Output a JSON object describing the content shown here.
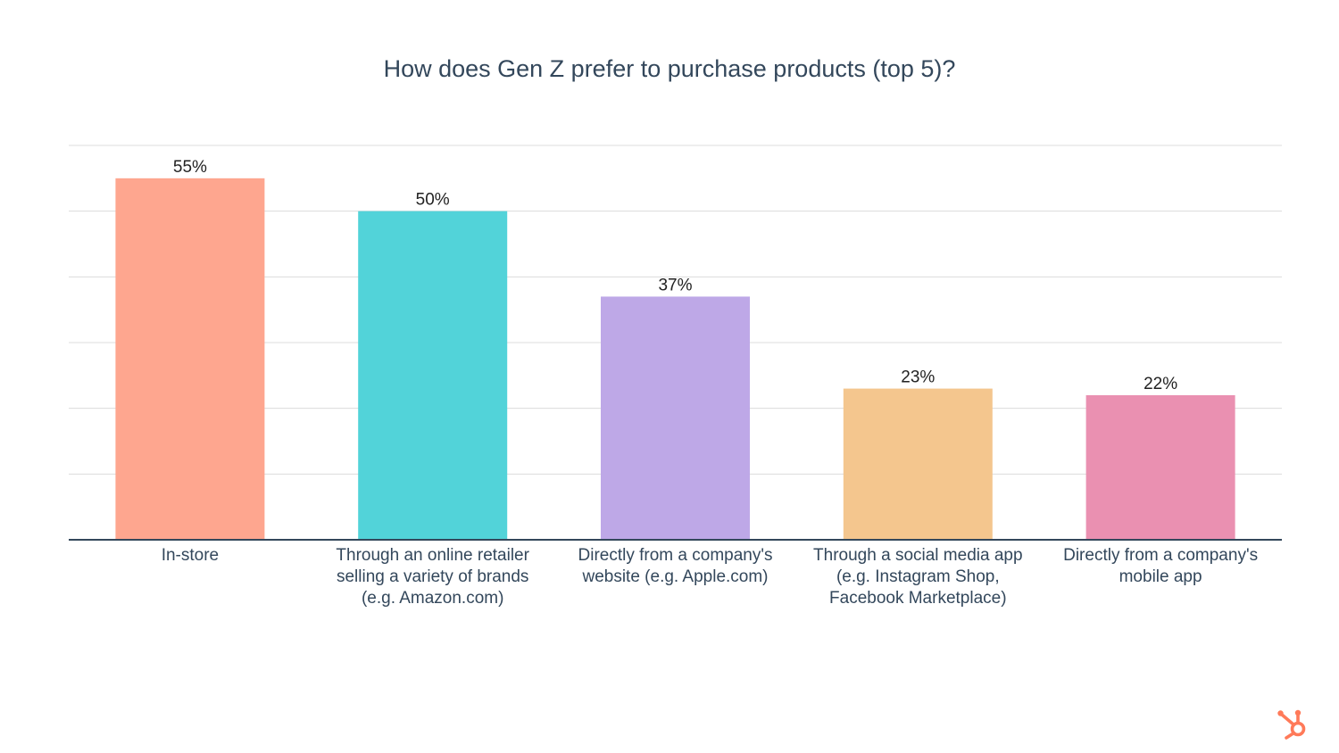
{
  "chart_data": {
    "type": "bar",
    "title": "How does Gen Z prefer to purchase products (top 5)?",
    "xlabel": "",
    "ylabel": "",
    "ylim": [
      0,
      60
    ],
    "grid": true,
    "categories": [
      [
        "In-store"
      ],
      [
        "Through an online retailer",
        "selling a variety of brands",
        "(e.g. Amazon.com)"
      ],
      [
        "Directly from a company's",
        "website (e.g. Apple.com)"
      ],
      [
        "Through a social media app",
        "(e.g. Instagram Shop,",
        "Facebook Marketplace)"
      ],
      [
        "Directly from a company's",
        "mobile app"
      ]
    ],
    "values": [
      55,
      50,
      37,
      23,
      22
    ],
    "value_labels": [
      "55%",
      "50%",
      "37%",
      "23%",
      "22%"
    ],
    "colors": [
      "#fea68f",
      "#52d3d9",
      "#bea8e7",
      "#f4c68e",
      "#ea90b1"
    ]
  },
  "logo": {
    "icon": "hubspot-sprocket-icon",
    "color": "#ff7a59"
  }
}
